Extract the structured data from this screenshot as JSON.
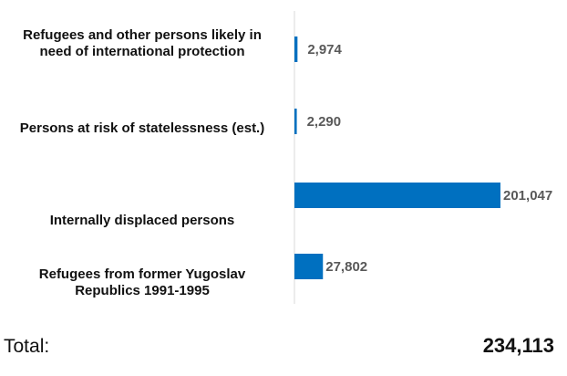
{
  "chart_data": {
    "type": "bar",
    "orientation": "horizontal",
    "categories": [
      "Refugees and other persons likely in need of international protection",
      "Persons at risk of statelessness (est.)",
      "Internally displaced persons",
      "Refugees from former Yugoslav Republics 1991-1995"
    ],
    "values": [
      2974,
      2290,
      201047,
      27802
    ],
    "value_labels": [
      "2,974",
      "2,290",
      "201,047",
      "27,802"
    ],
    "bar_color": "#0070c0",
    "grid": false,
    "legend": "none"
  },
  "labels": {
    "cat0": "Refugees and other persons likely in need of international protection",
    "cat1": "Persons at risk of statelessness (est.)",
    "cat2": "Internally displaced persons",
    "cat3": "Refugees from former Yugoslav Republics 1991-1995"
  },
  "total": {
    "label": "Total:",
    "value": "234,113"
  }
}
